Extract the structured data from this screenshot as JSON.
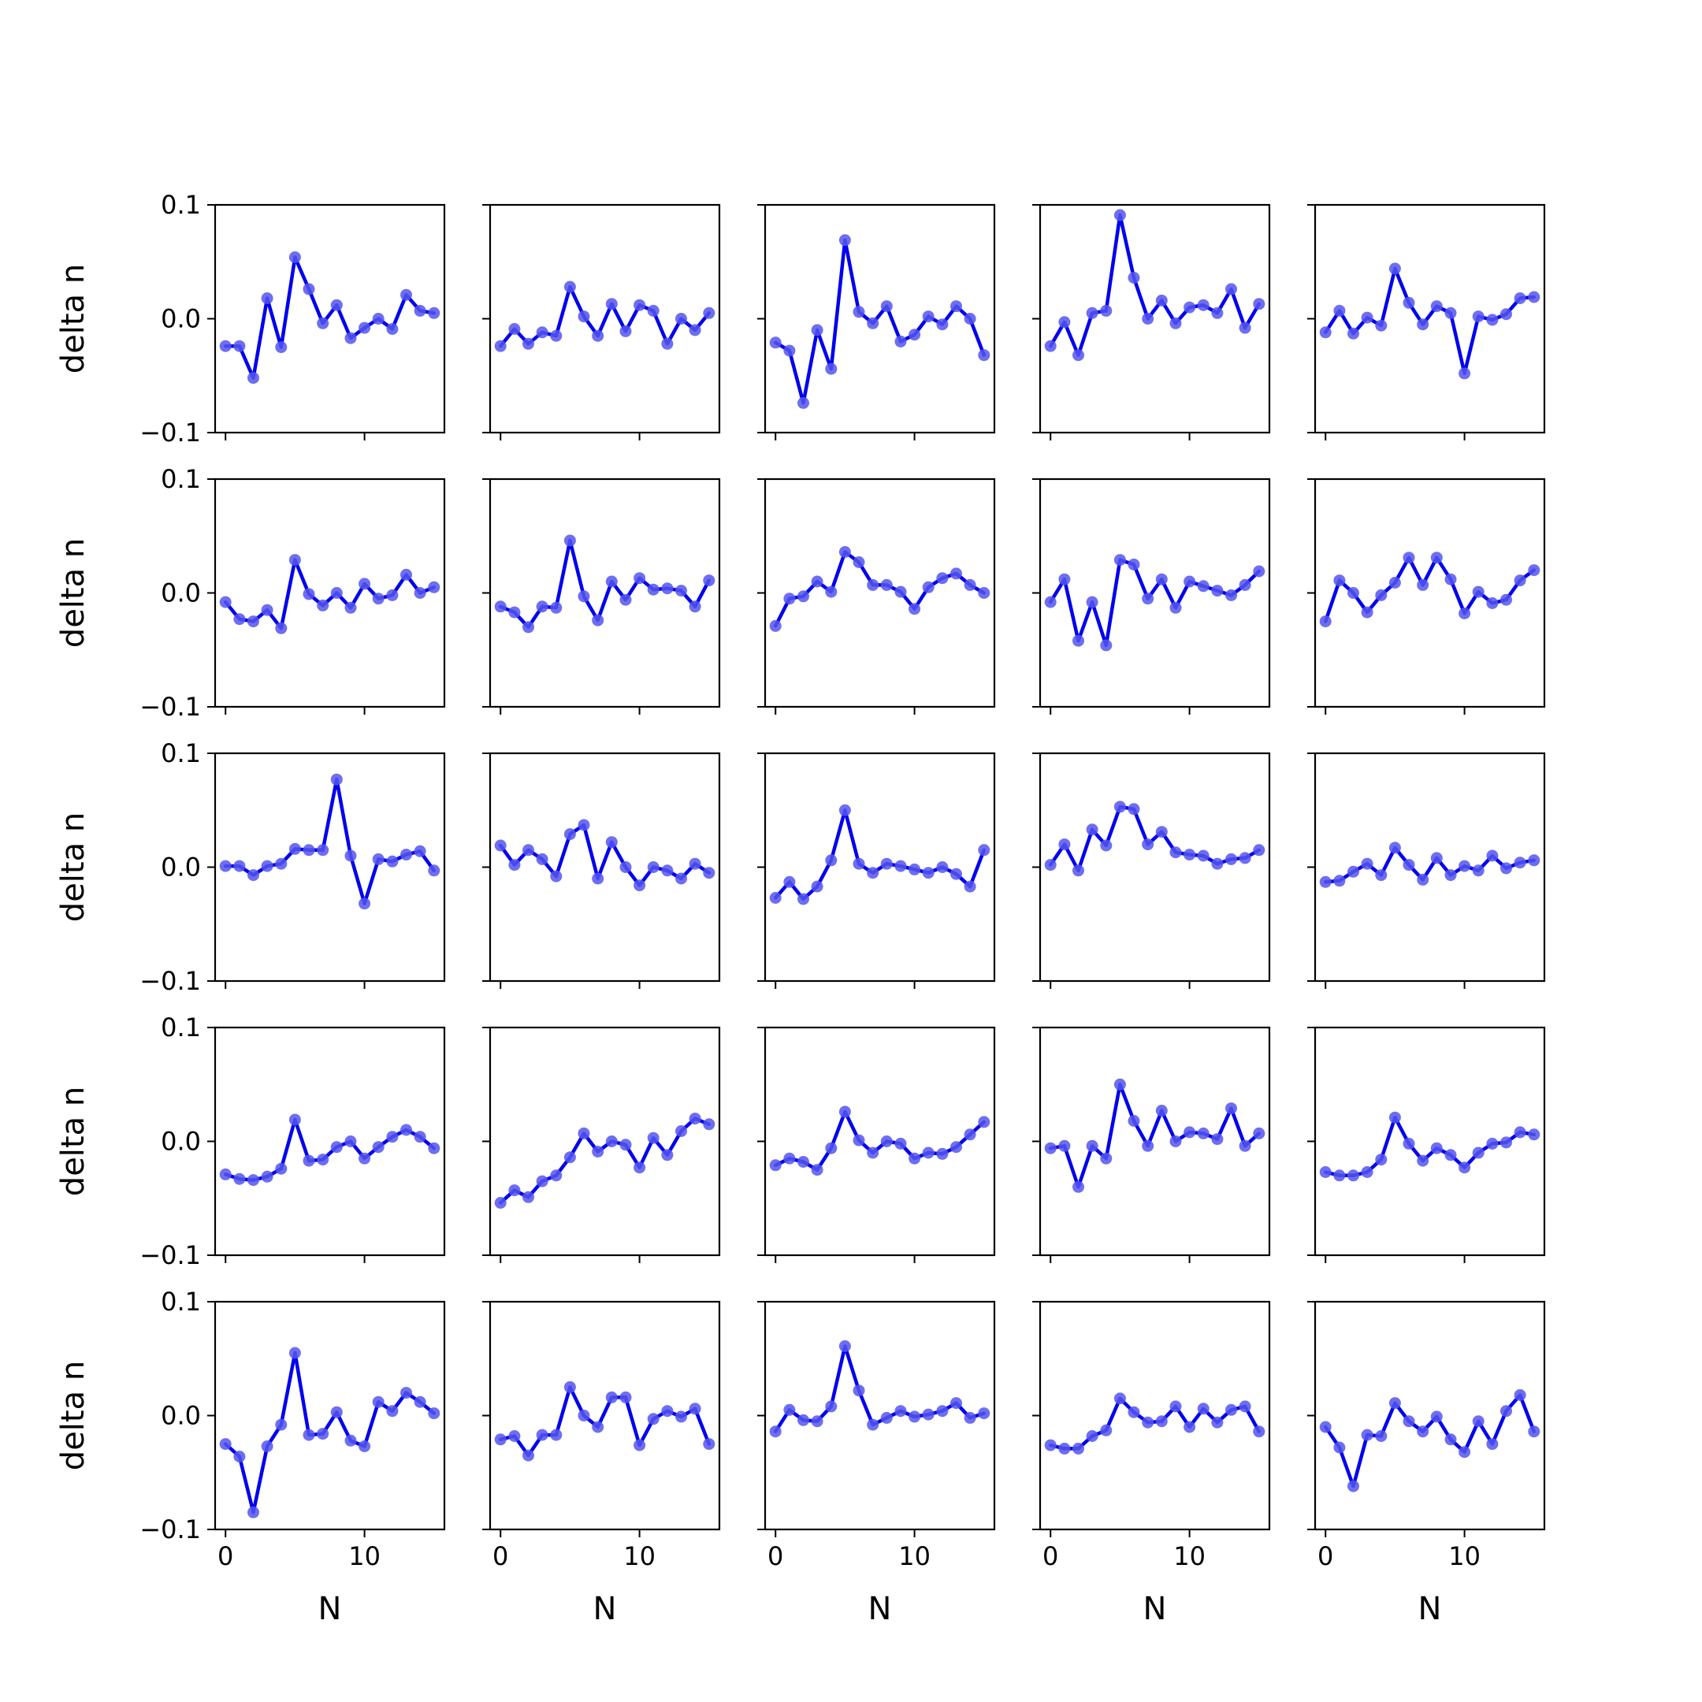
{
  "figure": {
    "line_color": "#0000ee",
    "marker_color": "#5555ee",
    "ylabel": "delta n",
    "xlabel": "N",
    "xticks": [
      0,
      10
    ],
    "yticks": [
      -0.1,
      0.0,
      0.1
    ],
    "ytick_labels": [
      "−0.1",
      "0.0",
      "0.1"
    ],
    "xtick_labels": [
      "0",
      "10"
    ]
  },
  "chart_data": [
    {
      "type": "line",
      "row": 0,
      "col": 0,
      "x": [
        0,
        1,
        2,
        3,
        4,
        5,
        6,
        7,
        8,
        9,
        10,
        11,
        12,
        13,
        14,
        15
      ],
      "values": [
        -0.024,
        -0.024,
        -0.052,
        0.018,
        -0.025,
        0.054,
        0.026,
        -0.004,
        0.012,
        -0.017,
        -0.008,
        0.0,
        -0.009,
        0.021,
        0.007,
        0.005
      ],
      "xlim": [
        -0.75,
        15.75
      ],
      "ylim": [
        -0.1,
        0.1
      ]
    },
    {
      "type": "line",
      "row": 0,
      "col": 1,
      "x": [
        0,
        1,
        2,
        3,
        4,
        5,
        6,
        7,
        8,
        9,
        10,
        11,
        12,
        13,
        14,
        15
      ],
      "values": [
        -0.024,
        -0.009,
        -0.022,
        -0.012,
        -0.015,
        0.028,
        0.002,
        -0.015,
        0.013,
        -0.011,
        0.012,
        0.007,
        -0.022,
        0.0,
        -0.01,
        0.005
      ],
      "xlim": [
        -0.75,
        15.75
      ],
      "ylim": [
        -0.1,
        0.1
      ]
    },
    {
      "type": "line",
      "row": 0,
      "col": 2,
      "x": [
        0,
        1,
        2,
        3,
        4,
        5,
        6,
        7,
        8,
        9,
        10,
        11,
        12,
        13,
        14,
        15
      ],
      "values": [
        -0.021,
        -0.028,
        -0.074,
        -0.01,
        -0.044,
        0.069,
        0.006,
        -0.004,
        0.011,
        -0.02,
        -0.014,
        0.002,
        -0.005,
        0.011,
        0.0,
        -0.032
      ],
      "xlim": [
        -0.75,
        15.75
      ],
      "ylim": [
        -0.1,
        0.1
      ]
    },
    {
      "type": "line",
      "row": 0,
      "col": 3,
      "x": [
        0,
        1,
        2,
        3,
        4,
        5,
        6,
        7,
        8,
        9,
        10,
        11,
        12,
        13,
        14,
        15
      ],
      "values": [
        -0.024,
        -0.003,
        -0.032,
        0.005,
        0.007,
        0.091,
        0.036,
        0.0,
        0.016,
        -0.004,
        0.01,
        0.012,
        0.005,
        0.026,
        -0.008,
        0.013
      ],
      "xlim": [
        -0.75,
        15.75
      ],
      "ylim": [
        -0.1,
        0.1
      ]
    },
    {
      "type": "line",
      "row": 0,
      "col": 4,
      "x": [
        0,
        1,
        2,
        3,
        4,
        5,
        6,
        7,
        8,
        9,
        10,
        11,
        12,
        13,
        14,
        15
      ],
      "values": [
        -0.012,
        0.007,
        -0.013,
        0.001,
        -0.006,
        0.044,
        0.014,
        -0.005,
        0.011,
        0.005,
        -0.048,
        0.002,
        -0.001,
        0.004,
        0.018,
        0.019
      ],
      "xlim": [
        -0.75,
        15.75
      ],
      "ylim": [
        -0.1,
        0.1
      ]
    },
    {
      "type": "line",
      "row": 1,
      "col": 0,
      "x": [
        0,
        1,
        2,
        3,
        4,
        5,
        6,
        7,
        8,
        9,
        10,
        11,
        12,
        13,
        14,
        15
      ],
      "values": [
        -0.008,
        -0.023,
        -0.025,
        -0.015,
        -0.031,
        0.029,
        -0.001,
        -0.011,
        0.0,
        -0.013,
        0.008,
        -0.005,
        -0.002,
        0.016,
        0.0,
        0.005
      ],
      "xlim": [
        -0.75,
        15.75
      ],
      "ylim": [
        -0.1,
        0.1
      ]
    },
    {
      "type": "line",
      "row": 1,
      "col": 1,
      "x": [
        0,
        1,
        2,
        3,
        4,
        5,
        6,
        7,
        8,
        9,
        10,
        11,
        12,
        13,
        14,
        15
      ],
      "values": [
        -0.012,
        -0.017,
        -0.03,
        -0.012,
        -0.013,
        0.046,
        -0.003,
        -0.024,
        0.01,
        -0.006,
        0.013,
        0.003,
        0.004,
        0.002,
        -0.012,
        0.011
      ],
      "xlim": [
        -0.75,
        15.75
      ],
      "ylim": [
        -0.1,
        0.1
      ]
    },
    {
      "type": "line",
      "row": 1,
      "col": 2,
      "x": [
        0,
        1,
        2,
        3,
        4,
        5,
        6,
        7,
        8,
        9,
        10,
        11,
        12,
        13,
        14,
        15
      ],
      "values": [
        -0.029,
        -0.005,
        -0.003,
        0.01,
        0.001,
        0.036,
        0.027,
        0.007,
        0.007,
        0.001,
        -0.014,
        0.005,
        0.013,
        0.017,
        0.007,
        0.0
      ],
      "xlim": [
        -0.75,
        15.75
      ],
      "ylim": [
        -0.1,
        0.1
      ]
    },
    {
      "type": "line",
      "row": 1,
      "col": 3,
      "x": [
        0,
        1,
        2,
        3,
        4,
        5,
        6,
        7,
        8,
        9,
        10,
        11,
        12,
        13,
        14,
        15
      ],
      "values": [
        -0.008,
        0.012,
        -0.042,
        -0.008,
        -0.046,
        0.029,
        0.025,
        -0.005,
        0.012,
        -0.013,
        0.01,
        0.006,
        0.002,
        -0.002,
        0.007,
        0.019
      ],
      "xlim": [
        -0.75,
        15.75
      ],
      "ylim": [
        -0.1,
        0.1
      ]
    },
    {
      "type": "line",
      "row": 1,
      "col": 4,
      "x": [
        0,
        1,
        2,
        3,
        4,
        5,
        6,
        7,
        8,
        9,
        10,
        11,
        12,
        13,
        14,
        15
      ],
      "values": [
        -0.025,
        0.011,
        0.0,
        -0.017,
        -0.002,
        0.009,
        0.031,
        0.007,
        0.031,
        0.012,
        -0.018,
        0.001,
        -0.009,
        -0.006,
        0.011,
        0.02
      ],
      "xlim": [
        -0.75,
        15.75
      ],
      "ylim": [
        -0.1,
        0.1
      ]
    },
    {
      "type": "line",
      "row": 2,
      "col": 0,
      "x": [
        0,
        1,
        2,
        3,
        4,
        5,
        6,
        7,
        8,
        9,
        10,
        11,
        12,
        13,
        14,
        15
      ],
      "values": [
        0.001,
        0.001,
        -0.007,
        0.001,
        0.003,
        0.016,
        0.015,
        0.015,
        0.077,
        0.01,
        -0.032,
        0.007,
        0.005,
        0.011,
        0.014,
        -0.003
      ],
      "xlim": [
        -0.75,
        15.75
      ],
      "ylim": [
        -0.1,
        0.1
      ]
    },
    {
      "type": "line",
      "row": 2,
      "col": 1,
      "x": [
        0,
        1,
        2,
        3,
        4,
        5,
        6,
        7,
        8,
        9,
        10,
        11,
        12,
        13,
        14,
        15
      ],
      "values": [
        0.019,
        0.002,
        0.015,
        0.007,
        -0.008,
        0.029,
        0.037,
        -0.01,
        0.022,
        0.0,
        -0.016,
        0.0,
        -0.003,
        -0.01,
        0.003,
        -0.005
      ],
      "xlim": [
        -0.75,
        15.75
      ],
      "ylim": [
        -0.1,
        0.1
      ]
    },
    {
      "type": "line",
      "row": 2,
      "col": 2,
      "x": [
        0,
        1,
        2,
        3,
        4,
        5,
        6,
        7,
        8,
        9,
        10,
        11,
        12,
        13,
        14,
        15
      ],
      "values": [
        -0.027,
        -0.013,
        -0.028,
        -0.017,
        0.006,
        0.05,
        0.003,
        -0.005,
        0.003,
        0.001,
        -0.002,
        -0.005,
        0.0,
        -0.006,
        -0.017,
        0.015
      ],
      "xlim": [
        -0.75,
        15.75
      ],
      "ylim": [
        -0.1,
        0.1
      ]
    },
    {
      "type": "line",
      "row": 2,
      "col": 3,
      "x": [
        0,
        1,
        2,
        3,
        4,
        5,
        6,
        7,
        8,
        9,
        10,
        11,
        12,
        13,
        14,
        15
      ],
      "values": [
        0.002,
        0.02,
        -0.003,
        0.033,
        0.019,
        0.053,
        0.051,
        0.02,
        0.031,
        0.013,
        0.011,
        0.01,
        0.003,
        0.007,
        0.008,
        0.015
      ],
      "xlim": [
        -0.75,
        15.75
      ],
      "ylim": [
        -0.1,
        0.1
      ]
    },
    {
      "type": "line",
      "row": 2,
      "col": 4,
      "x": [
        0,
        1,
        2,
        3,
        4,
        5,
        6,
        7,
        8,
        9,
        10,
        11,
        12,
        13,
        14,
        15
      ],
      "values": [
        -0.013,
        -0.012,
        -0.004,
        0.003,
        -0.007,
        0.017,
        0.002,
        -0.011,
        0.008,
        -0.007,
        0.001,
        -0.003,
        0.01,
        -0.001,
        0.004,
        0.006
      ],
      "xlim": [
        -0.75,
        15.75
      ],
      "ylim": [
        -0.1,
        0.1
      ]
    },
    {
      "type": "line",
      "row": 3,
      "col": 0,
      "x": [
        0,
        1,
        2,
        3,
        4,
        5,
        6,
        7,
        8,
        9,
        10,
        11,
        12,
        13,
        14,
        15
      ],
      "values": [
        -0.029,
        -0.033,
        -0.034,
        -0.031,
        -0.024,
        0.019,
        -0.017,
        -0.016,
        -0.005,
        0.0,
        -0.015,
        -0.005,
        0.004,
        0.01,
        0.004,
        -0.006
      ],
      "xlim": [
        -0.75,
        15.75
      ],
      "ylim": [
        -0.1,
        0.1
      ]
    },
    {
      "type": "line",
      "row": 3,
      "col": 1,
      "x": [
        0,
        1,
        2,
        3,
        4,
        5,
        6,
        7,
        8,
        9,
        10,
        11,
        12,
        13,
        14,
        15
      ],
      "values": [
        -0.054,
        -0.043,
        -0.049,
        -0.035,
        -0.03,
        -0.014,
        0.007,
        -0.009,
        0.0,
        -0.003,
        -0.023,
        0.003,
        -0.012,
        0.009,
        0.02,
        0.015
      ],
      "xlim": [
        -0.75,
        15.75
      ],
      "ylim": [
        -0.1,
        0.1
      ]
    },
    {
      "type": "line",
      "row": 3,
      "col": 2,
      "x": [
        0,
        1,
        2,
        3,
        4,
        5,
        6,
        7,
        8,
        9,
        10,
        11,
        12,
        13,
        14,
        15
      ],
      "values": [
        -0.021,
        -0.015,
        -0.018,
        -0.025,
        -0.006,
        0.026,
        0.001,
        -0.01,
        0.0,
        -0.002,
        -0.015,
        -0.01,
        -0.011,
        -0.005,
        0.006,
        0.017
      ],
      "xlim": [
        -0.75,
        15.75
      ],
      "ylim": [
        -0.1,
        0.1
      ]
    },
    {
      "type": "line",
      "row": 3,
      "col": 3,
      "x": [
        0,
        1,
        2,
        3,
        4,
        5,
        6,
        7,
        8,
        9,
        10,
        11,
        12,
        13,
        14,
        15
      ],
      "values": [
        -0.006,
        -0.004,
        -0.04,
        -0.004,
        -0.015,
        0.05,
        0.018,
        -0.004,
        0.027,
        0.0,
        0.008,
        0.007,
        0.002,
        0.029,
        -0.004,
        0.007
      ],
      "xlim": [
        -0.75,
        15.75
      ],
      "ylim": [
        -0.1,
        0.1
      ]
    },
    {
      "type": "line",
      "row": 3,
      "col": 4,
      "x": [
        0,
        1,
        2,
        3,
        4,
        5,
        6,
        7,
        8,
        9,
        10,
        11,
        12,
        13,
        14,
        15
      ],
      "values": [
        -0.027,
        -0.03,
        -0.03,
        -0.027,
        -0.016,
        0.021,
        -0.002,
        -0.017,
        -0.006,
        -0.012,
        -0.023,
        -0.01,
        -0.002,
        -0.001,
        0.008,
        0.006
      ],
      "xlim": [
        -0.75,
        15.75
      ],
      "ylim": [
        -0.1,
        0.1
      ]
    },
    {
      "type": "line",
      "row": 4,
      "col": 0,
      "x": [
        0,
        1,
        2,
        3,
        4,
        5,
        6,
        7,
        8,
        9,
        10,
        11,
        12,
        13,
        14,
        15
      ],
      "values": [
        -0.025,
        -0.036,
        -0.085,
        -0.027,
        -0.008,
        0.055,
        -0.017,
        -0.016,
        0.003,
        -0.022,
        -0.027,
        0.012,
        0.004,
        0.02,
        0.012,
        0.002
      ],
      "xlim": [
        -0.75,
        15.75
      ],
      "ylim": [
        -0.1,
        0.1
      ]
    },
    {
      "type": "line",
      "row": 4,
      "col": 1,
      "x": [
        0,
        1,
        2,
        3,
        4,
        5,
        6,
        7,
        8,
        9,
        10,
        11,
        12,
        13,
        14,
        15
      ],
      "values": [
        -0.021,
        -0.018,
        -0.035,
        -0.017,
        -0.017,
        0.025,
        0.0,
        -0.01,
        0.016,
        0.016,
        -0.026,
        -0.003,
        0.004,
        -0.001,
        0.006,
        -0.025
      ],
      "xlim": [
        -0.75,
        15.75
      ],
      "ylim": [
        -0.1,
        0.1
      ]
    },
    {
      "type": "line",
      "row": 4,
      "col": 2,
      "x": [
        0,
        1,
        2,
        3,
        4,
        5,
        6,
        7,
        8,
        9,
        10,
        11,
        12,
        13,
        14,
        15
      ],
      "values": [
        -0.014,
        0.005,
        -0.004,
        -0.005,
        0.008,
        0.061,
        0.022,
        -0.008,
        -0.002,
        0.004,
        -0.001,
        0.001,
        0.004,
        0.011,
        -0.002,
        0.002
      ],
      "xlim": [
        -0.75,
        15.75
      ],
      "ylim": [
        -0.1,
        0.1
      ]
    },
    {
      "type": "line",
      "row": 4,
      "col": 3,
      "x": [
        0,
        1,
        2,
        3,
        4,
        5,
        6,
        7,
        8,
        9,
        10,
        11,
        12,
        13,
        14,
        15
      ],
      "values": [
        -0.026,
        -0.029,
        -0.029,
        -0.018,
        -0.013,
        0.015,
        0.003,
        -0.006,
        -0.005,
        0.008,
        -0.01,
        0.006,
        -0.006,
        0.005,
        0.008,
        -0.014
      ],
      "xlim": [
        -0.75,
        15.75
      ],
      "ylim": [
        -0.1,
        0.1
      ]
    },
    {
      "type": "line",
      "row": 4,
      "col": 4,
      "x": [
        0,
        1,
        2,
        3,
        4,
        5,
        6,
        7,
        8,
        9,
        10,
        11,
        12,
        13,
        14,
        15
      ],
      "values": [
        -0.01,
        -0.028,
        -0.062,
        -0.017,
        -0.018,
        0.011,
        -0.005,
        -0.014,
        -0.001,
        -0.021,
        -0.032,
        -0.005,
        -0.025,
        0.004,
        0.018,
        -0.014
      ],
      "xlim": [
        -0.75,
        15.75
      ],
      "ylim": [
        -0.1,
        0.1
      ]
    }
  ]
}
